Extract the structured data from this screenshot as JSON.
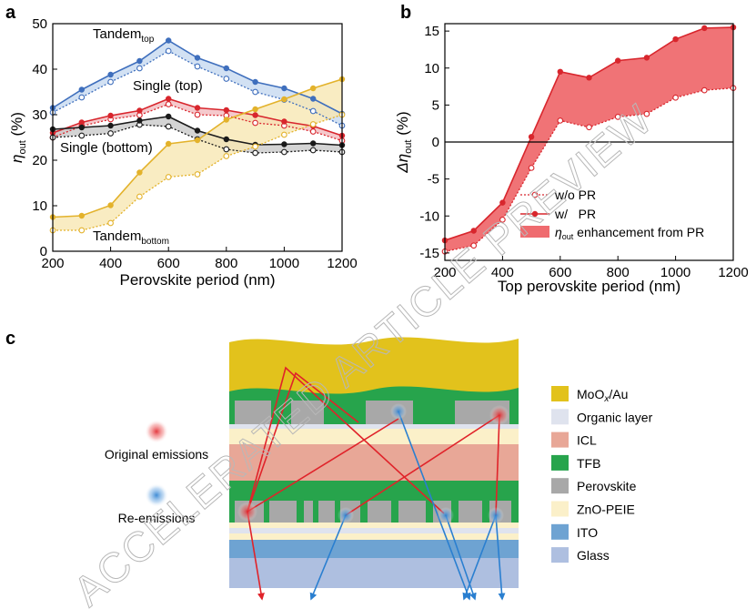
{
  "panel_labels": {
    "a": "a",
    "b": "b",
    "c": "c"
  },
  "watermark": "ACCELERATED ARTICLE PREVIEW",
  "colors": {
    "tandem_top": "#3f6fbd",
    "single_top": "#d8262d",
    "single_bottom": "#1a1a1a",
    "tandem_bottom": "#e3b22b",
    "band_tt": "#c7d9f0",
    "band_st": "#f3bcbf",
    "band_sb": "#c9c9c9",
    "band_tb": "#f8e7b3",
    "pr_line": "#d8262d",
    "pr_band": "#ef6b6f",
    "original_emission": "#e0232a",
    "re_emission": "#2a7fd0"
  },
  "chart_data": [
    {
      "panel": "a",
      "type": "line",
      "xlabel": "Perovskite period (nm)",
      "ylabel_main": "η",
      "ylabel_sub": "out",
      "ylabel_unit": " (%)",
      "xlim": [
        200,
        1200
      ],
      "ylim": [
        0,
        50
      ],
      "xticks": [
        200,
        400,
        600,
        800,
        1000,
        1200
      ],
      "yticks": [
        0,
        10,
        20,
        30,
        40,
        50
      ],
      "x": [
        200,
        300,
        400,
        500,
        600,
        700,
        800,
        900,
        1000,
        1100,
        1200
      ],
      "series": [
        {
          "key": "tandem_top",
          "name": "Tandem top",
          "with_pr": [
            31.5,
            35.5,
            38.8,
            41.8,
            46.3,
            42.5,
            40.2,
            37.2,
            35.8,
            33.5,
            30.2
          ],
          "without_pr": [
            30.5,
            33.8,
            37.2,
            40.2,
            44.0,
            40.6,
            37.9,
            35.0,
            33.3,
            30.8,
            27.6
          ]
        },
        {
          "key": "single_top",
          "name": "Single (top)",
          "with_pr": [
            26.0,
            28.3,
            29.8,
            30.9,
            33.5,
            31.5,
            31.0,
            29.9,
            28.5,
            27.5,
            25.4
          ],
          "without_pr": [
            25.0,
            27.5,
            29.0,
            29.9,
            32.3,
            30.0,
            29.8,
            28.2,
            27.6,
            26.3,
            24.3
          ]
        },
        {
          "key": "single_bottom",
          "name": "Single (bottom)",
          "with_pr": [
            26.8,
            27.2,
            27.6,
            28.7,
            29.6,
            26.5,
            24.6,
            23.4,
            23.5,
            23.7,
            23.3
          ],
          "without_pr": [
            25.0,
            25.4,
            25.9,
            27.8,
            27.4,
            24.6,
            22.4,
            21.6,
            21.8,
            22.2,
            21.8
          ]
        },
        {
          "key": "tandem_bottom",
          "name": "Tandem bottom",
          "with_pr": [
            7.5,
            7.8,
            10.1,
            17.3,
            23.6,
            24.4,
            28.9,
            31.2,
            33.4,
            35.8,
            37.8
          ],
          "without_pr": [
            4.6,
            4.6,
            6.2,
            12.0,
            16.3,
            16.9,
            20.9,
            23.0,
            25.6,
            27.9,
            30.0
          ]
        }
      ],
      "annotations": [
        {
          "key": "tandem_top",
          "main": "Tandem",
          "sub": "top"
        },
        {
          "key": "single_top",
          "main": "Single (top)",
          "sub": ""
        },
        {
          "key": "single_bottom",
          "main": "Single (bottom)",
          "sub": ""
        },
        {
          "key": "tandem_bottom",
          "main": "Tandem",
          "sub": "bottom"
        }
      ]
    },
    {
      "panel": "b",
      "type": "line",
      "xlabel": "Top perovskite period (nm)",
      "ylabel_prefix": "Δη",
      "ylabel_sub": "out",
      "ylabel_unit": " (%)",
      "xlim": [
        200,
        1200
      ],
      "ylim": [
        -16,
        16
      ],
      "xticks": [
        200,
        400,
        600,
        800,
        1000,
        1200
      ],
      "yticks": [
        -15,
        -10,
        -5,
        0,
        5,
        10,
        15
      ],
      "zero_line": 0,
      "x": [
        200,
        300,
        400,
        500,
        600,
        700,
        800,
        900,
        1000,
        1100,
        1200
      ],
      "series": [
        {
          "name": "w/o PR",
          "style": "open-dotted",
          "values": [
            -14.8,
            -14.0,
            -10.5,
            -3.5,
            2.9,
            2.0,
            3.4,
            3.8,
            6.0,
            7.0,
            7.3
          ]
        },
        {
          "name": "w/ PR",
          "style": "filled-solid",
          "values": [
            -13.3,
            -12.0,
            -8.2,
            0.7,
            9.5,
            8.7,
            11.0,
            11.4,
            13.9,
            15.4,
            15.5
          ]
        }
      ],
      "legend": {
        "position": "bottom-right",
        "items": [
          {
            "label": "w/o PR"
          },
          {
            "label": "w/   PR"
          },
          {
            "label_main": "η",
            "label_sub": "out",
            "label_rest": " enhancement from PR"
          }
        ]
      }
    }
  ],
  "panel_c": {
    "legend_items": [
      {
        "key": "mooxau",
        "main": "MoO",
        "sub": "x",
        "rest": "/Au",
        "color": "#e2c21c"
      },
      {
        "key": "organic",
        "main": "Organic layer",
        "sub": "",
        "rest": "",
        "color": "#dfe3ee"
      },
      {
        "key": "icl",
        "main": "ICL",
        "sub": "",
        "rest": "",
        "color": "#e8a797"
      },
      {
        "key": "tfb",
        "main": "TFB",
        "sub": "",
        "rest": "",
        "color": "#27a44c"
      },
      {
        "key": "perovskite",
        "main": "Perovskite",
        "sub": "",
        "rest": "",
        "color": "#a8a8a8"
      },
      {
        "key": "zno",
        "main": "ZnO-PEIE",
        "sub": "",
        "rest": "",
        "color": "#fbf0c9"
      },
      {
        "key": "ito",
        "main": "ITO",
        "sub": "",
        "rest": "",
        "color": "#6ea3d2"
      },
      {
        "key": "glass",
        "main": "Glass",
        "sub": "",
        "rest": "",
        "color": "#aebfe0"
      }
    ],
    "emission_labels": {
      "original": "Original emissions",
      "re": "Re-emissions"
    }
  }
}
